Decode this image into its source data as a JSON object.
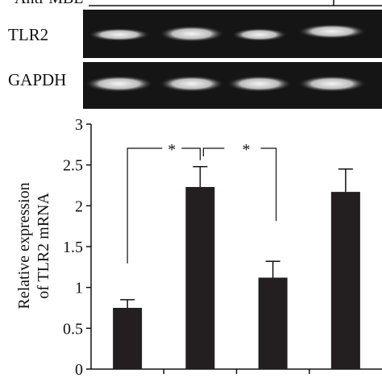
{
  "gel": {
    "header": "Anti-MBL",
    "rows": [
      "TLR2",
      "GAPDH"
    ]
  },
  "chart_data": {
    "type": "bar",
    "y_label": [
      "Relative expression",
      "of TLR2 mRNA"
    ],
    "categories": [
      null,
      null,
      null,
      null
    ],
    "values": [
      0.75,
      2.23,
      1.12,
      2.17
    ],
    "errors": [
      0.1,
      0.25,
      0.2,
      0.28
    ],
    "color": "#231f20",
    "ylim": [
      0,
      3
    ],
    "yticks": [
      0,
      0.5,
      1,
      1.5,
      2,
      2.5,
      3
    ],
    "annotations": [
      "*",
      "*"
    ]
  }
}
